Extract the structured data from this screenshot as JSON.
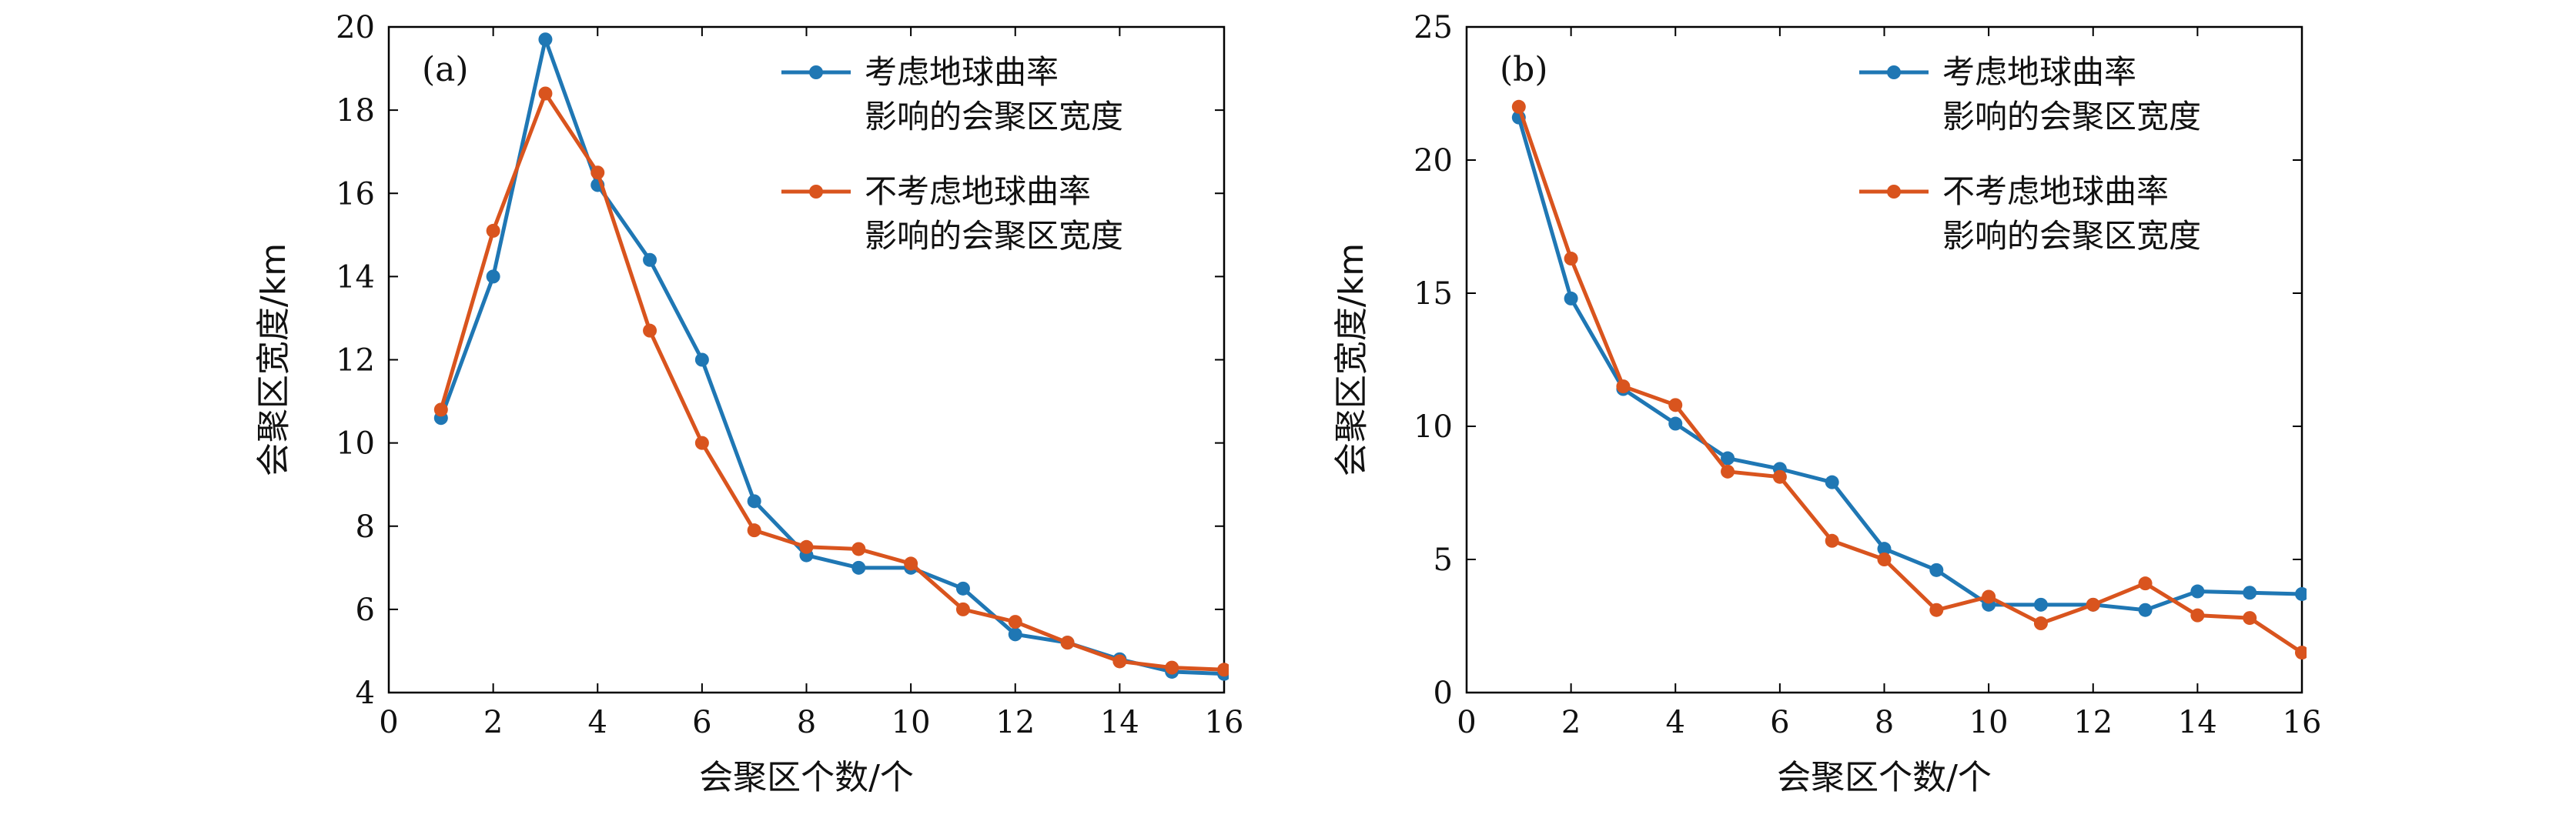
{
  "chart_data": [
    {
      "type": "line",
      "panel_label": "(a)",
      "xlabel": "会聚区个数/个",
      "ylabel": "会聚区宽度/km",
      "xlim": [
        0,
        16
      ],
      "ylim": [
        4,
        20
      ],
      "xticks": [
        0,
        2,
        4,
        6,
        8,
        10,
        12,
        14,
        16
      ],
      "yticks": [
        4,
        6,
        8,
        10,
        12,
        14,
        16,
        18,
        20
      ],
      "grid": false,
      "legend_position": "top-right",
      "x": [
        1,
        2,
        3,
        4,
        5,
        6,
        7,
        8,
        9,
        10,
        11,
        12,
        13,
        14,
        15,
        16
      ],
      "series": [
        {
          "name": "考虑地球曲率影响的会聚区宽度",
          "legend_lines": [
            "考虑地球曲率",
            "影响的会聚区宽度"
          ],
          "color": "#1f77b4",
          "values": [
            10.6,
            14.0,
            19.7,
            16.2,
            14.4,
            12.0,
            8.6,
            7.3,
            7.0,
            7.0,
            6.5,
            5.4,
            5.2,
            4.8,
            4.5,
            4.45
          ]
        },
        {
          "name": "不考虑地球曲率影响的会聚区宽度",
          "legend_lines": [
            "不考虑地球曲率",
            "影响的会聚区宽度"
          ],
          "color": "#d9541e",
          "values": [
            10.8,
            15.1,
            18.4,
            16.5,
            12.7,
            10.0,
            7.9,
            7.5,
            7.45,
            7.1,
            6.0,
            5.7,
            5.2,
            4.75,
            4.6,
            4.55
          ]
        }
      ]
    },
    {
      "type": "line",
      "panel_label": "(b)",
      "xlabel": "会聚区个数/个",
      "ylabel": "会聚区宽度/km",
      "xlim": [
        0,
        16
      ],
      "ylim": [
        0,
        25
      ],
      "xticks": [
        0,
        2,
        4,
        6,
        8,
        10,
        12,
        14,
        16
      ],
      "yticks": [
        0,
        5,
        10,
        15,
        20,
        25
      ],
      "grid": false,
      "legend_position": "top-right",
      "x": [
        1,
        2,
        3,
        4,
        5,
        6,
        7,
        8,
        9,
        10,
        11,
        12,
        13,
        14,
        15,
        16
      ],
      "series": [
        {
          "name": "考虑地球曲率影响的会聚区宽度",
          "legend_lines": [
            "考虑地球曲率",
            "影响的会聚区宽度"
          ],
          "color": "#1f77b4",
          "values": [
            21.6,
            14.8,
            11.4,
            10.1,
            8.8,
            8.4,
            7.9,
            5.4,
            4.6,
            3.3,
            3.3,
            3.3,
            3.1,
            3.8,
            3.75,
            3.7
          ]
        },
        {
          "name": "不考虑地球曲率影响的会聚区宽度",
          "legend_lines": [
            "不考虑地球曲率",
            "影响的会聚区宽度"
          ],
          "color": "#d9541e",
          "values": [
            22.0,
            16.3,
            11.5,
            10.8,
            8.3,
            8.1,
            5.7,
            5.0,
            3.1,
            3.6,
            2.6,
            3.3,
            4.1,
            2.9,
            2.8,
            1.5
          ]
        }
      ]
    }
  ]
}
